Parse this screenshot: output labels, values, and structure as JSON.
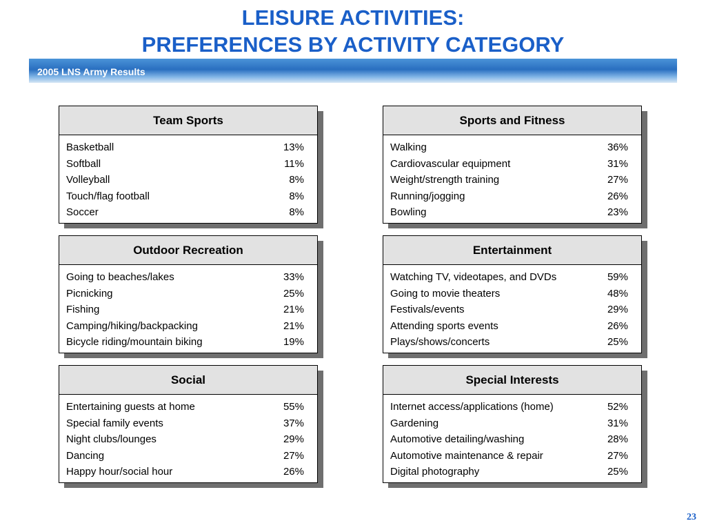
{
  "title": {
    "line1": "LEISURE ACTIVITIES:",
    "line2": "PREFERENCES BY ACTIVITY CATEGORY"
  },
  "banner": {
    "text": "2005 LNS Army Results"
  },
  "colors": {
    "title": "#1a5fc8",
    "banner": "#2a6fc0",
    "header_bg": "#e2e2e2",
    "shadow": "#6f6f6f"
  },
  "panels": [
    {
      "header": "Team Sports",
      "rows": [
        {
          "label": "Basketball",
          "value": "13%"
        },
        {
          "label": "Softball",
          "value": "11%"
        },
        {
          "label": "Volleyball",
          "value": "8%"
        },
        {
          "label": "Touch/flag football",
          "value": "8%"
        },
        {
          "label": "Soccer",
          "value": "8%"
        }
      ]
    },
    {
      "header": "Sports and Fitness",
      "rows": [
        {
          "label": "Walking",
          "value": "36%"
        },
        {
          "label": "Cardiovascular equipment",
          "value": "31%"
        },
        {
          "label": "Weight/strength training",
          "value": "27%"
        },
        {
          "label": "Running/jogging",
          "value": "26%"
        },
        {
          "label": "Bowling",
          "value": "23%"
        }
      ]
    },
    {
      "header": "Outdoor Recreation",
      "rows": [
        {
          "label": "Going to beaches/lakes",
          "value": "33%"
        },
        {
          "label": "Picnicking",
          "value": "25%"
        },
        {
          "label": "Fishing",
          "value": "21%"
        },
        {
          "label": "Camping/hiking/backpacking",
          "value": "21%"
        },
        {
          "label": "Bicycle riding/mountain biking",
          "value": "19%"
        }
      ]
    },
    {
      "header": "Entertainment",
      "rows": [
        {
          "label": "Watching TV, videotapes, and DVDs",
          "value": "59%"
        },
        {
          "label": "Going to movie theaters",
          "value": "48%"
        },
        {
          "label": "Festivals/events",
          "value": "29%"
        },
        {
          "label": "Attending sports events",
          "value": "26%"
        },
        {
          "label": "Plays/shows/concerts",
          "value": "25%"
        }
      ]
    },
    {
      "header": "Social",
      "rows": [
        {
          "label": "Entertaining guests at home",
          "value": "55%"
        },
        {
          "label": "Special family events",
          "value": "37%"
        },
        {
          "label": "Night clubs/lounges",
          "value": "29%"
        },
        {
          "label": "Dancing",
          "value": "27%"
        },
        {
          "label": "Happy hour/social hour",
          "value": "26%"
        }
      ]
    },
    {
      "header": "Special Interests",
      "rows": [
        {
          "label": "Internet access/applications (home)",
          "value": "52%"
        },
        {
          "label": "Gardening",
          "value": "31%"
        },
        {
          "label": "Automotive detailing/washing",
          "value": "28%"
        },
        {
          "label": "Automotive maintenance & repair",
          "value": "27%"
        },
        {
          "label": "Digital photography",
          "value": "25%"
        }
      ]
    }
  ],
  "page_number": "23"
}
